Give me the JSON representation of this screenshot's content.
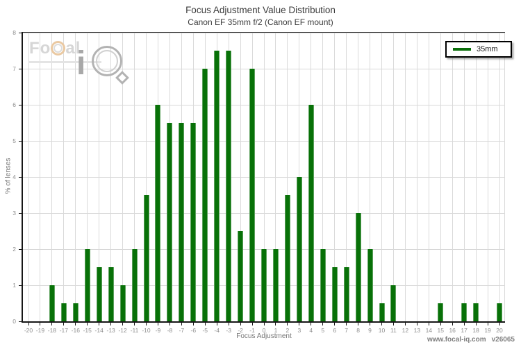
{
  "header": {
    "title": "Focus Adjustment Value Distribution",
    "subtitle": "Canon EF 35mm f/2 (Canon EF mount)"
  },
  "legend": {
    "label": "35mm"
  },
  "watermark": {
    "fo": "Fo",
    "al": "al",
    "i": "i"
  },
  "footer": {
    "site": "www.focal-iq.com",
    "version": "v26065"
  },
  "colors": {
    "bar": "#087108",
    "bar_edge": "#5fa25f",
    "grid": "#d8d8d8",
    "axis": "#161616",
    "tick_label": "#8c8c8c",
    "logo_orange": "#eac9a2"
  },
  "chart_data": {
    "type": "bar",
    "title": "Focus Adjustment Value Distribution",
    "subtitle": "Canon EF 35mm f/2 (Canon EF mount)",
    "xlabel": "Focus Adjustment",
    "ylabel": "% of lenses",
    "x": [
      -20,
      -19,
      -18,
      -17,
      -16,
      -15,
      -14,
      -13,
      -12,
      -11,
      -10,
      -9,
      -8,
      -7,
      -6,
      -5,
      -4,
      -3,
      -2,
      -1,
      0,
      1,
      2,
      3,
      4,
      5,
      6,
      7,
      8,
      9,
      10,
      11,
      12,
      13,
      14,
      15,
      16,
      17,
      18,
      19,
      20
    ],
    "values": [
      0,
      0,
      1,
      0.5,
      0.5,
      2,
      1.5,
      1.5,
      1,
      2,
      3.5,
      6,
      5.5,
      5.5,
      5.5,
      7,
      7.5,
      7.5,
      2.5,
      7,
      2,
      2,
      3.5,
      4,
      6,
      2,
      1.5,
      1.5,
      3,
      2,
      0.5,
      1,
      0,
      0,
      0,
      0.5,
      0,
      0.5,
      0.5,
      0,
      0.5
    ],
    "ylim": [
      0,
      8
    ],
    "ytick_step": 1,
    "xtick_step": 1,
    "grid": true,
    "series": [
      {
        "name": "35mm",
        "color": "#087108"
      }
    ],
    "legend_position": "top-right"
  }
}
